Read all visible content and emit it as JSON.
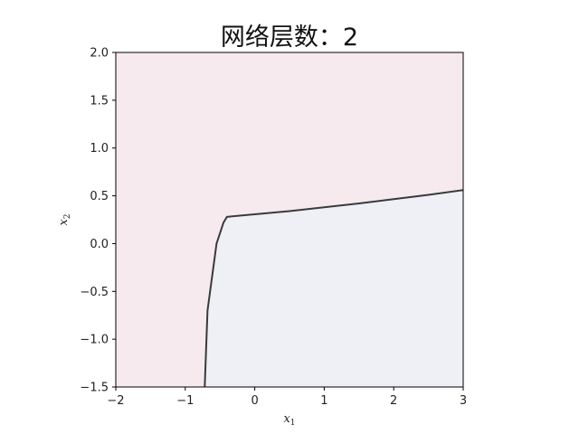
{
  "chart_data": {
    "type": "area",
    "title": "网络层数：2",
    "xlabel": "x",
    "xlabel_sub": "1",
    "ylabel": "x",
    "ylabel_sub": "2",
    "xlim": [
      -2,
      3
    ],
    "ylim": [
      -1.5,
      2.0
    ],
    "xticks": [
      -2,
      -1,
      0,
      1,
      2,
      3
    ],
    "xtick_labels": [
      "−2",
      "−1",
      "0",
      "1",
      "2",
      "3"
    ],
    "yticks": [
      -1.5,
      -1.0,
      -0.5,
      0.0,
      0.5,
      1.0,
      1.5,
      2.0
    ],
    "ytick_labels": [
      "−1.5",
      "−1.0",
      "−0.5",
      "0.0",
      "0.5",
      "1.0",
      "1.5",
      "2.0"
    ],
    "grid": false,
    "colors": {
      "background_region": "#f6eaef",
      "inner_region": "#eff0f6",
      "boundary": "#3a3a3a",
      "axes": "#000000"
    },
    "decision_boundary": {
      "x": [
        -0.72,
        -0.68,
        -0.55,
        -0.45,
        -0.4,
        0.5,
        1.5,
        2.5,
        3.0
      ],
      "y": [
        -1.5,
        -0.7,
        0.0,
        0.22,
        0.28,
        0.34,
        0.42,
        0.51,
        0.56
      ]
    }
  }
}
